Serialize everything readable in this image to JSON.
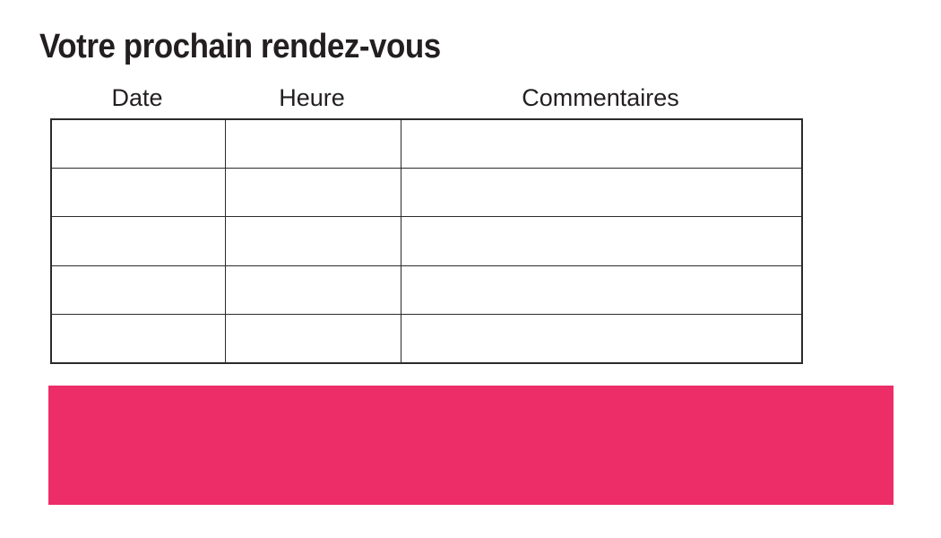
{
  "page": {
    "title": "Votre prochain rendez-vous"
  },
  "appointments_table": {
    "columns": [
      {
        "label": "Date"
      },
      {
        "label": "Heure"
      },
      {
        "label": "Commentaires"
      }
    ],
    "rows": [
      [
        "",
        "",
        ""
      ],
      [
        "",
        "",
        ""
      ],
      [
        "",
        "",
        ""
      ],
      [
        "",
        "",
        ""
      ],
      [
        "",
        "",
        ""
      ]
    ]
  },
  "banner": {
    "text": "",
    "color": "#ED2D67"
  },
  "colors": {
    "background": "#FFFFFF",
    "text": "#231F20",
    "table_border": "#2B2B2B",
    "accent_pink": "#ED2D67"
  }
}
